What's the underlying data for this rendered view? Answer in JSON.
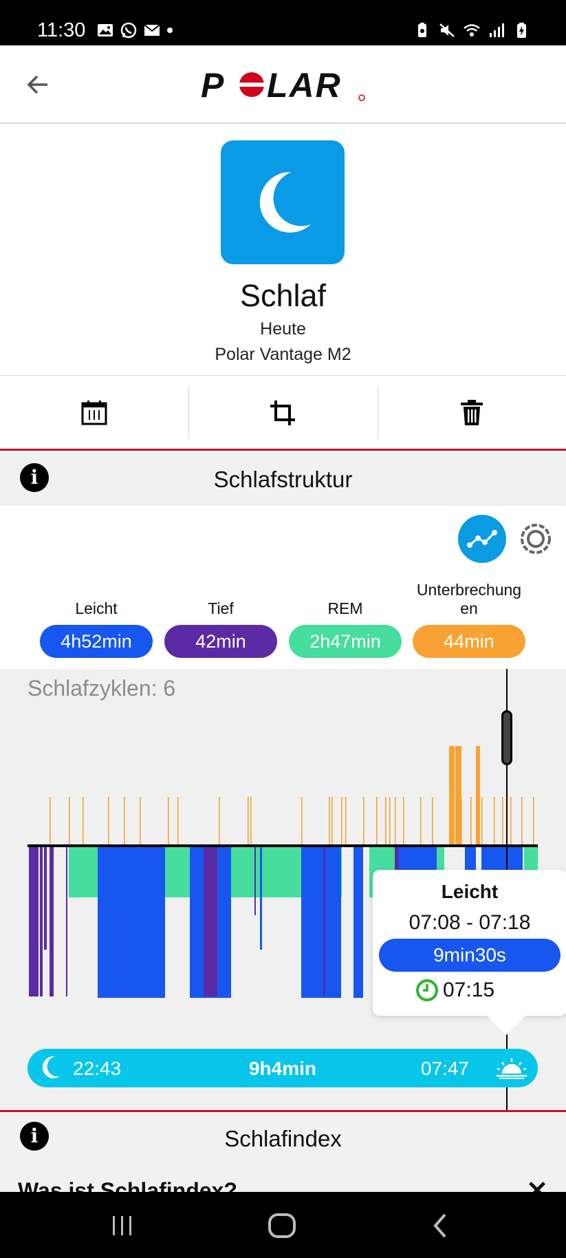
{
  "status_bar": {
    "time": "11:30"
  },
  "header": {
    "logo_text": "POLAR"
  },
  "hero": {
    "title": "Schlaf",
    "subtitle": "Heute",
    "device": "Polar Vantage M2"
  },
  "sections": {
    "structure_title": "Schlafstruktur",
    "index_title": "Schlafindex"
  },
  "legend": [
    {
      "label": "Leicht",
      "value": "4h52min",
      "color": "#1757f0"
    },
    {
      "label": "Tief",
      "value": "42min",
      "color": "#5b2ba6"
    },
    {
      "label": "REM",
      "value": "2h47min",
      "color": "#46dd9d"
    },
    {
      "label": "Unterbrechung\nen",
      "value": "44min",
      "color": "#f7a233"
    }
  ],
  "chart": {
    "cycles_label": "Schlafzyklen: 6"
  },
  "tooltip": {
    "stage": "Leicht",
    "range": "07:08 - 07:18",
    "duration": "9min30s",
    "time": "07:15"
  },
  "sleep_bar": {
    "start": "22:43",
    "duration": "9h4min",
    "end": "07:47"
  },
  "partial": {
    "question": "Was ist Schlafindex?"
  },
  "colors": {
    "accent_red": "#c8102e",
    "tile_blue": "#0a9ae6",
    "bar_cyan": "#08c6ea",
    "light": "#1757f0",
    "deep": "#5b2ba6",
    "rem": "#46dd9d",
    "interruption": "#f7a233"
  }
}
